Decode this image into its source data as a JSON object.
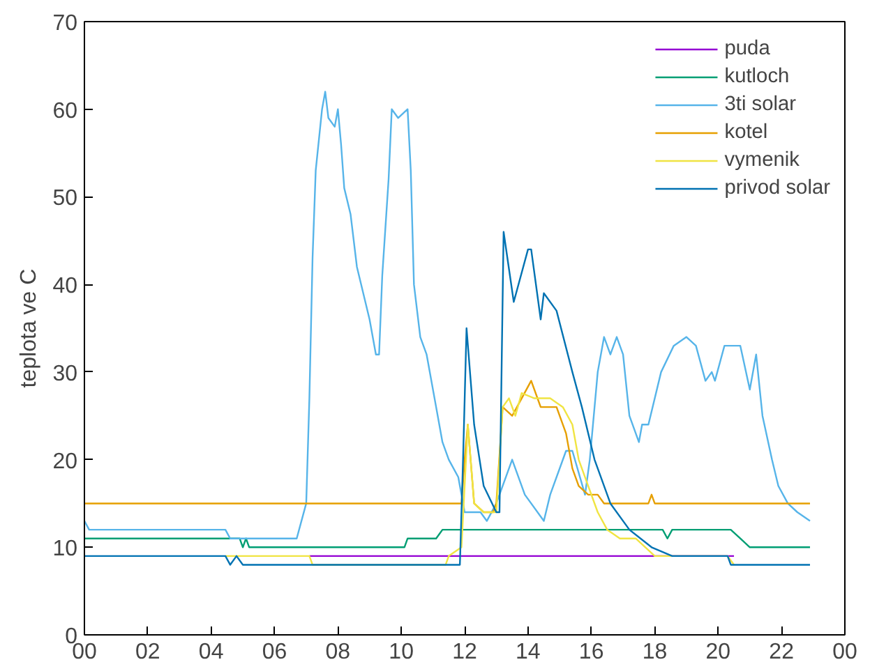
{
  "chart_data": {
    "type": "line",
    "ylabel": "teplota ve C",
    "xlim": [
      0,
      24
    ],
    "ylim": [
      0,
      70
    ],
    "xticks": [
      {
        "value": 0,
        "label": "00"
      },
      {
        "value": 2,
        "label": "02"
      },
      {
        "value": 4,
        "label": "04"
      },
      {
        "value": 6,
        "label": "06"
      },
      {
        "value": 8,
        "label": "08"
      },
      {
        "value": 10,
        "label": "10"
      },
      {
        "value": 12,
        "label": "12"
      },
      {
        "value": 14,
        "label": "14"
      },
      {
        "value": 16,
        "label": "16"
      },
      {
        "value": 18,
        "label": "18"
      },
      {
        "value": 20,
        "label": "20"
      },
      {
        "value": 22,
        "label": "22"
      },
      {
        "value": 24,
        "label": "00"
      }
    ],
    "yticks": [
      0,
      10,
      20,
      30,
      40,
      50,
      60,
      70
    ],
    "grid": false,
    "legend": "top right",
    "marker": "none",
    "line_style": "solid",
    "series": [
      {
        "name": "puda",
        "color": "#9400d3",
        "x": [
          7.1,
          20.5
        ],
        "values": [
          9,
          9
        ]
      },
      {
        "name": "kutloch",
        "color": "#009e73",
        "x": [
          0,
          4.9,
          5.0,
          5.1,
          5.2,
          10.1,
          10.2,
          11.1,
          11.3,
          18.25,
          18.4,
          18.55,
          20.4,
          20.7,
          21.0,
          22.9
        ],
        "values": [
          11,
          11,
          10,
          11,
          10,
          10,
          11,
          11,
          12,
          12,
          11,
          12,
          12,
          11,
          10,
          10
        ]
      },
      {
        "name": "3ti solar",
        "color": "#56b4e9",
        "x": [
          0,
          0.15,
          4.45,
          4.6,
          6.7,
          7.0,
          7.1,
          7.2,
          7.3,
          7.5,
          7.6,
          7.7,
          7.9,
          8.0,
          8.1,
          8.2,
          8.4,
          8.6,
          8.8,
          9.0,
          9.2,
          9.3,
          9.4,
          9.6,
          9.7,
          9.9,
          10.2,
          10.3,
          10.4,
          10.6,
          10.8,
          11.1,
          11.3,
          11.5,
          11.8,
          12.0,
          12.2,
          12.5,
          12.7,
          13.0,
          13.5,
          13.9,
          14.5,
          14.7,
          15.2,
          15.4,
          15.8,
          15.95,
          16.2,
          16.4,
          16.6,
          16.8,
          17.0,
          17.2,
          17.5,
          17.6,
          17.8,
          18.2,
          18.6,
          19.0,
          19.3,
          19.6,
          19.8,
          19.9,
          20.2,
          20.5,
          20.7,
          21.0,
          21.2,
          21.4,
          21.7,
          21.9,
          22.2,
          22.5,
          22.9
        ],
        "values": [
          13,
          12,
          12,
          11,
          11,
          15,
          27,
          43,
          53,
          60,
          62,
          59,
          58,
          60,
          56,
          51,
          48,
          42,
          39,
          36,
          32,
          32,
          41,
          52,
          60,
          59,
          60,
          53,
          40,
          34,
          32,
          26,
          22,
          20,
          18,
          14,
          14,
          14,
          13,
          15,
          20,
          16,
          13,
          16,
          21,
          21,
          16,
          20,
          30,
          34,
          32,
          34,
          32,
          25,
          22,
          24,
          24,
          30,
          33,
          34,
          33,
          29,
          30,
          29,
          33,
          33,
          33,
          28,
          32,
          25,
          20,
          17,
          15,
          14,
          13
        ]
      },
      {
        "name": "kotel",
        "color": "#e69f00",
        "x": [
          0,
          11.9,
          12.0,
          12.1,
          12.3,
          12.6,
          12.9,
          13.0,
          13.2,
          13.5,
          13.8,
          14.1,
          14.4,
          14.9,
          15.2,
          15.4,
          15.6,
          15.9,
          16.2,
          16.4,
          16.6,
          17.8,
          17.9,
          18.0,
          22.9
        ],
        "values": [
          15,
          15,
          20,
          24,
          15,
          14,
          14,
          15,
          26,
          25,
          27,
          29,
          26,
          26,
          23,
          19,
          17,
          16,
          16,
          15,
          15,
          15,
          16,
          15,
          15
        ]
      },
      {
        "name": "vymenik",
        "color": "#f0e442",
        "x": [
          4.45,
          7.1,
          7.2,
          11.4,
          11.5,
          11.9,
          12.1,
          12.3,
          12.6,
          13.0,
          13.2,
          13.4,
          13.6,
          13.8,
          14.2,
          14.7,
          15.1,
          15.4,
          15.6,
          15.9,
          16.2,
          16.5,
          16.9,
          17.4,
          18.0,
          20.3,
          20.5
        ],
        "values": [
          9,
          9,
          8,
          8,
          9,
          10,
          24,
          15,
          14,
          14,
          26,
          27,
          25,
          27.6,
          27,
          27,
          26,
          24,
          20,
          17,
          14,
          12,
          11,
          11,
          9,
          9,
          8
        ]
      },
      {
        "name": "privod solar",
        "color": "#0072b2",
        "x": [
          0,
          4.45,
          4.6,
          4.8,
          5.0,
          11.85,
          11.95,
          12.06,
          12.3,
          12.6,
          13.0,
          13.1,
          13.23,
          13.55,
          14.0,
          14.1,
          14.4,
          14.5,
          14.9,
          15.4,
          15.7,
          16.1,
          16.6,
          17.2,
          17.9,
          18.55,
          20.3,
          20.4,
          22.9
        ],
        "values": [
          9,
          9,
          8,
          9,
          8,
          8,
          20,
          35,
          24,
          17,
          14,
          14,
          46,
          38,
          44,
          44,
          36,
          39,
          37,
          30,
          26,
          20,
          15,
          12,
          10,
          9,
          9,
          8,
          8
        ]
      }
    ]
  }
}
